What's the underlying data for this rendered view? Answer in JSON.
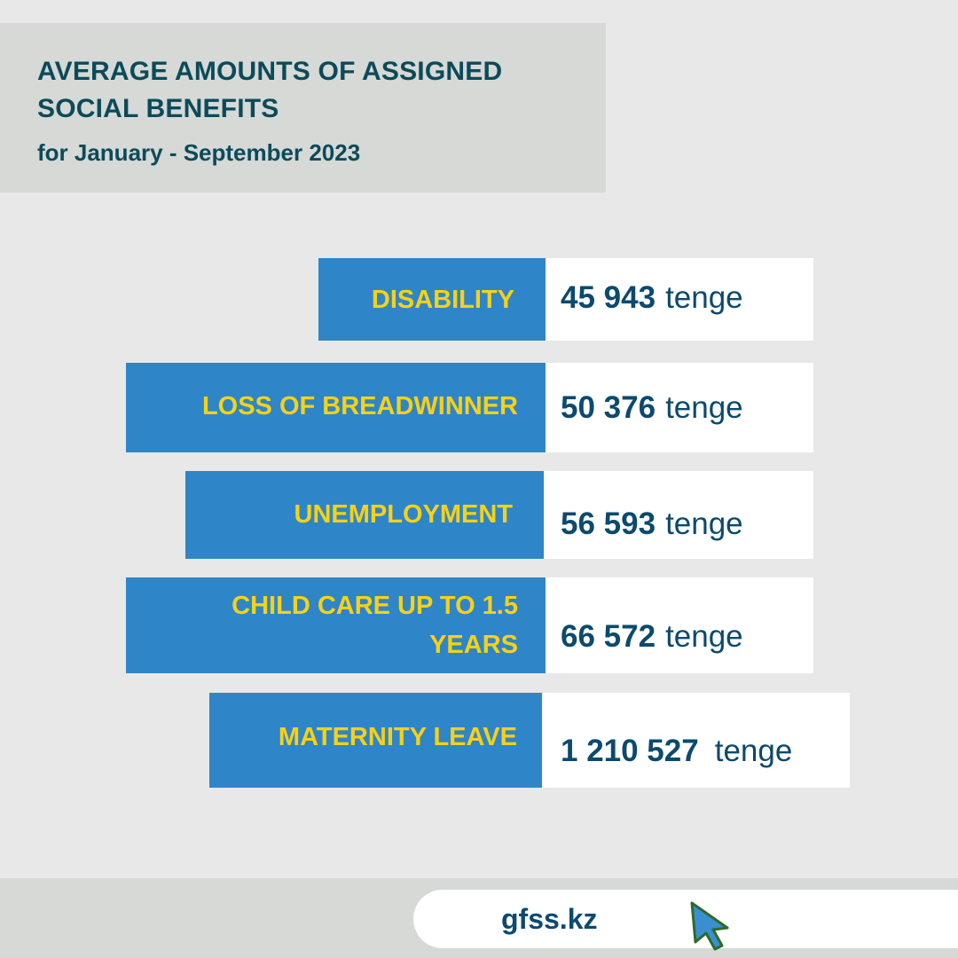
{
  "title": {
    "line1": "AVERAGE AMOUNTS OF ASSIGNED",
    "line2": "SOCIAL BENEFITS",
    "subtitle": "for January - September 2023"
  },
  "benefits": [
    {
      "label": "DISABILITY",
      "amount": "45 943",
      "unit": "tenge"
    },
    {
      "label": "LOSS OF BREADWINNER",
      "amount": "50 376",
      "unit": "tenge"
    },
    {
      "label": "UNEMPLOYMENT",
      "amount": "56 593",
      "unit": "tenge"
    },
    {
      "label_line1": "CHILD CARE UP TO 1.5",
      "label_line2": "YEARS",
      "amount": "66 572",
      "unit": "tenge"
    },
    {
      "label": "MATERNITY LEAVE",
      "amount": "1 210 527",
      "unit": "tenge"
    }
  ],
  "footer": {
    "site": "gfss.kz",
    "icon": "cursor-arrow-icon"
  },
  "colors": {
    "background": "#e8e8e8",
    "title_box": "#d6d9d6",
    "label_box": "#2e86c8",
    "label_text": "#f7d117",
    "value_text": "#0c4a6e",
    "title_text": "#0c4a5a"
  }
}
